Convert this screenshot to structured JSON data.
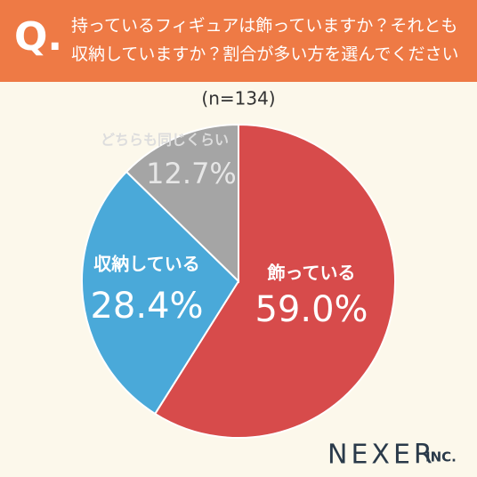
{
  "header": {
    "badge": "Q.",
    "title_lines": [
      "持っているフィギュアは飾っていますか？それとも",
      "収納していますか？割合が多い方を選んでください"
    ]
  },
  "chart_data": {
    "type": "pie",
    "subtitle": "(n=134)",
    "categories": [
      "飾っている",
      "収納している",
      "どちらも同じくらい"
    ],
    "values": [
      59.0,
      28.4,
      12.7
    ],
    "value_labels": [
      "59.0%",
      "28.4%",
      "12.7%"
    ],
    "colors": [
      "#d74b4b",
      "#4aa9d9",
      "#a5a5a5"
    ]
  },
  "footer": {
    "brand": "NEXER",
    "suffix": "INC."
  }
}
